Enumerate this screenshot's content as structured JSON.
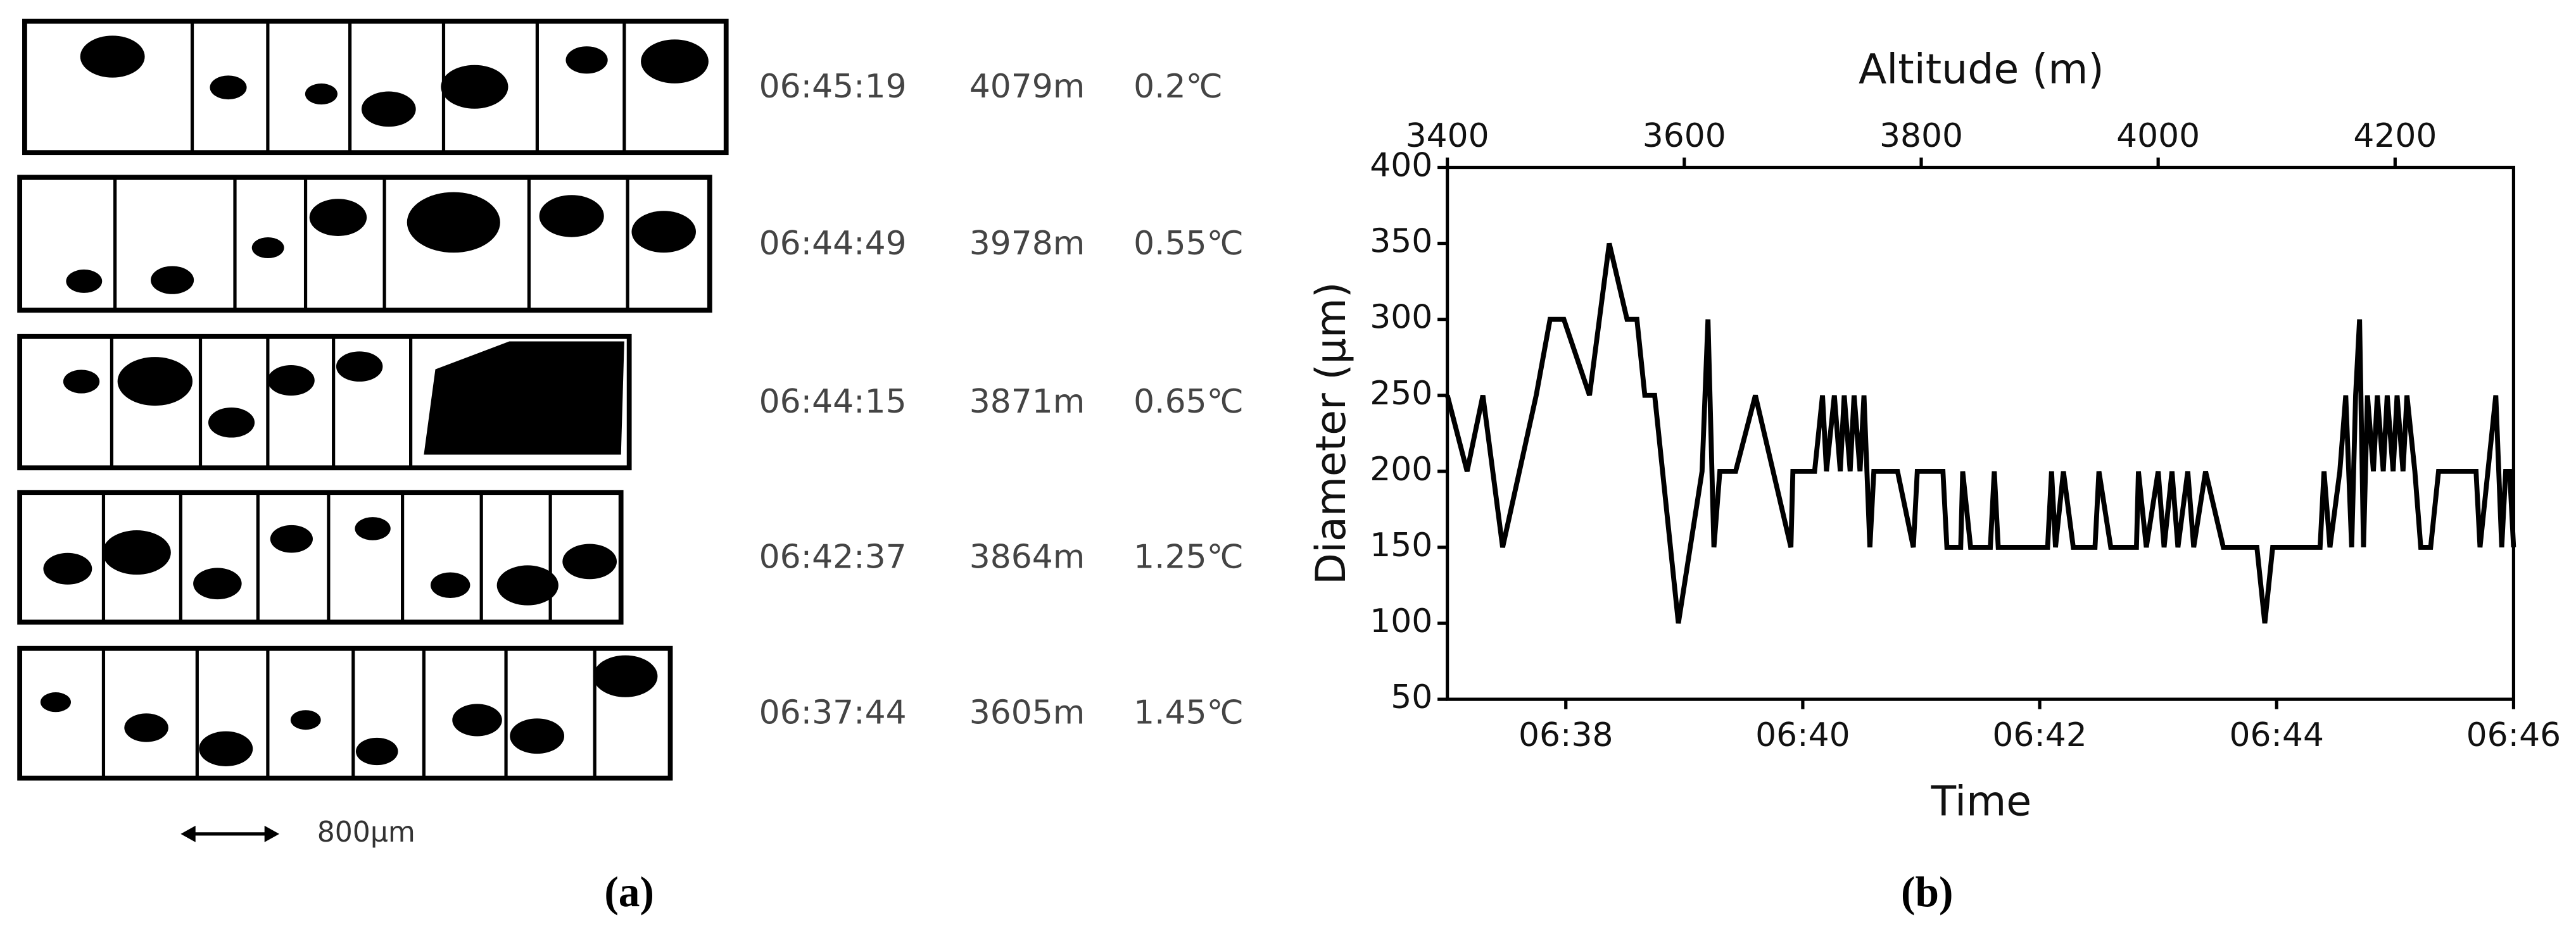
{
  "panel_a": {
    "rows": [
      {
        "time": "06:45:19",
        "altitude": "4079m",
        "temperature": "0.2℃"
      },
      {
        "time": "06:44:49",
        "altitude": "3978m",
        "temperature": "0.55℃"
      },
      {
        "time": "06:44:15",
        "altitude": "3871m",
        "temperature": "0.65℃"
      },
      {
        "time": "06:42:37",
        "altitude": "3864m",
        "temperature": "1.25℃"
      },
      {
        "time": "06:37:44",
        "altitude": "3605m",
        "temperature": "1.45℃"
      }
    ],
    "scale_label": "800μm",
    "caption": "(a)"
  },
  "chart_data": {
    "type": "line",
    "caption": "(b)",
    "x_label": "Time",
    "y_label": "Diameter (μm)",
    "x2_label": "Altitude (m)",
    "xlim": [
      "06:37",
      "06:46"
    ],
    "xticks": [
      "06:38",
      "06:40",
      "06:42",
      "06:44",
      "06:46"
    ],
    "x2lim": [
      3400,
      4300
    ],
    "x2ticks": [
      3400,
      3600,
      3800,
      4000,
      4200
    ],
    "ylim": [
      50,
      400
    ],
    "yticks": [
      50,
      100,
      150,
      200,
      250,
      300,
      350,
      400
    ],
    "series": [
      {
        "name": "Diameter",
        "color": "#000000",
        "x": [
          "06:37:00",
          "06:37:10",
          "06:37:18",
          "06:37:28",
          "06:37:45",
          "06:37:52",
          "06:37:59",
          "06:38:12",
          "06:38:22",
          "06:38:31",
          "06:38:36",
          "06:38:40",
          "06:38:45",
          "06:38:57",
          "06:39:09",
          "06:39:12",
          "06:39:15",
          "06:39:18",
          "06:39:26",
          "06:39:36",
          "06:39:54",
          "06:39:55",
          "06:40:06",
          "06:40:10",
          "06:40:12",
          "06:40:16",
          "06:40:19",
          "06:40:21",
          "06:40:24",
          "06:40:26",
          "06:40:29",
          "06:40:31",
          "06:40:34",
          "06:40:36",
          "06:40:48",
          "06:40:56",
          "06:40:58",
          "06:41:11",
          "06:41:13",
          "06:41:20",
          "06:41:21",
          "06:41:25",
          "06:41:35",
          "06:41:37",
          "06:41:39",
          "06:42:04",
          "06:42:06",
          "06:42:08",
          "06:42:12",
          "06:42:17",
          "06:42:28",
          "06:42:30",
          "06:42:36",
          "06:42:49",
          "06:42:50",
          "06:42:54",
          "06:43:00",
          "06:43:03",
          "06:43:07",
          "06:43:10",
          "06:43:15",
          "06:43:18",
          "06:43:24",
          "06:43:33",
          "06:43:50",
          "06:43:54",
          "06:43:58",
          "06:44:22",
          "06:44:24",
          "06:44:27",
          "06:44:32",
          "06:44:35",
          "06:44:38",
          "06:44:40",
          "06:44:42",
          "06:44:44",
          "06:44:46",
          "06:44:49",
          "06:44:51",
          "06:44:54",
          "06:44:56",
          "06:44:59",
          "06:45:01",
          "06:45:04",
          "06:45:06",
          "06:45:10",
          "06:45:13",
          "06:45:18",
          "06:45:22",
          "06:45:41",
          "06:45:43",
          "06:45:51",
          "06:45:54",
          "06:45:56",
          "06:45:58",
          "06:46:00"
        ],
        "values": [
          250,
          200,
          250,
          150,
          250,
          300,
          300,
          250,
          350,
          300,
          300,
          250,
          250,
          100,
          200,
          300,
          150,
          200,
          200,
          250,
          150,
          200,
          200,
          250,
          200,
          250,
          200,
          250,
          200,
          250,
          200,
          250,
          150,
          200,
          200,
          150,
          200,
          200,
          150,
          150,
          200,
          150,
          150,
          200,
          150,
          150,
          200,
          150,
          200,
          150,
          150,
          200,
          150,
          150,
          200,
          150,
          200,
          150,
          200,
          150,
          200,
          150,
          200,
          150,
          150,
          100,
          150,
          150,
          200,
          150,
          200,
          250,
          150,
          250,
          300,
          150,
          250,
          200,
          250,
          200,
          250,
          200,
          250,
          200,
          250,
          200,
          150,
          150,
          200,
          200,
          150,
          250,
          150,
          200,
          200,
          150
        ]
      }
    ]
  }
}
